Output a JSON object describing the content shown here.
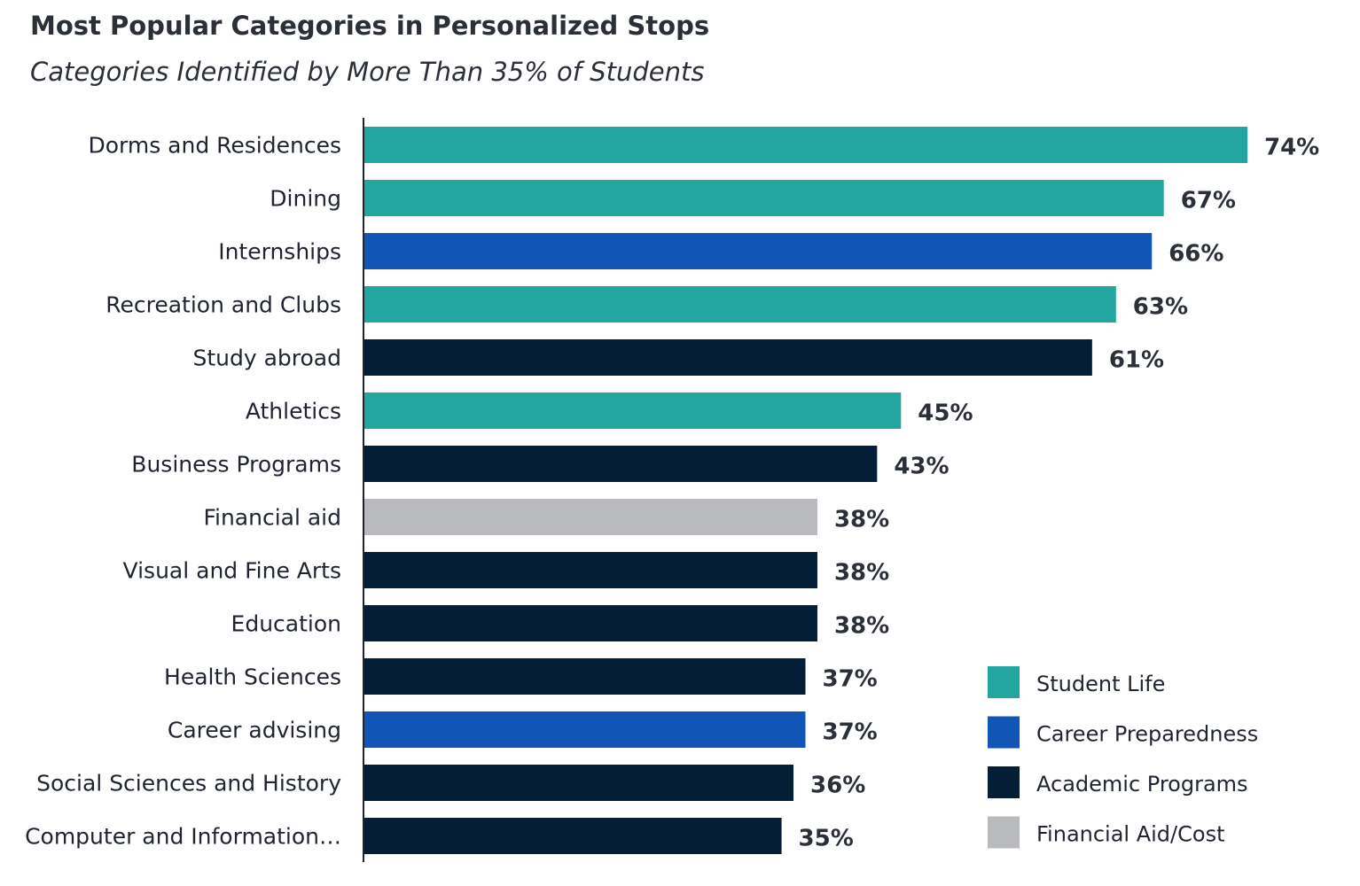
{
  "chart_data": {
    "type": "bar",
    "orientation": "horizontal",
    "title": "Most Popular Categories in Personalized Stops",
    "subtitle": "Categories Identified by More Than 35% of Students",
    "categories": [
      "Dorms and Residences",
      "Dining",
      "Internships",
      "Recreation and Clubs",
      "Study abroad",
      "Athletics",
      "Business Programs",
      "Financial aid",
      "Visual and Fine Arts",
      "Education",
      "Health Sciences",
      "Career advising",
      "Social Sciences and History",
      "Computer and Information…"
    ],
    "values": [
      74,
      67,
      66,
      63,
      61,
      45,
      43,
      38,
      38,
      38,
      37,
      37,
      36,
      35
    ],
    "value_labels": [
      "74%",
      "67%",
      "66%",
      "63%",
      "61%",
      "45%",
      "43%",
      "38%",
      "38%",
      "38%",
      "37%",
      "37%",
      "36%",
      "35%"
    ],
    "groups": [
      "Student Life",
      "Student Life",
      "Career Preparedness",
      "Student Life",
      "Academic Programs",
      "Student Life",
      "Academic Programs",
      "Financial Aid/Cost",
      "Academic Programs",
      "Academic Programs",
      "Academic Programs",
      "Career Preparedness",
      "Academic Programs",
      "Academic Programs"
    ],
    "legend": [
      {
        "name": "Student Life",
        "color": "#23a6a0"
      },
      {
        "name": "Career Preparedness",
        "color": "#1155b6"
      },
      {
        "name": "Academic Programs",
        "color": "#041e38"
      },
      {
        "name": "Financial Aid/Cost",
        "color": "#b8babd"
      }
    ],
    "legend_position": "bottom-right",
    "xlim": [
      0,
      74
    ],
    "grid": false
  }
}
